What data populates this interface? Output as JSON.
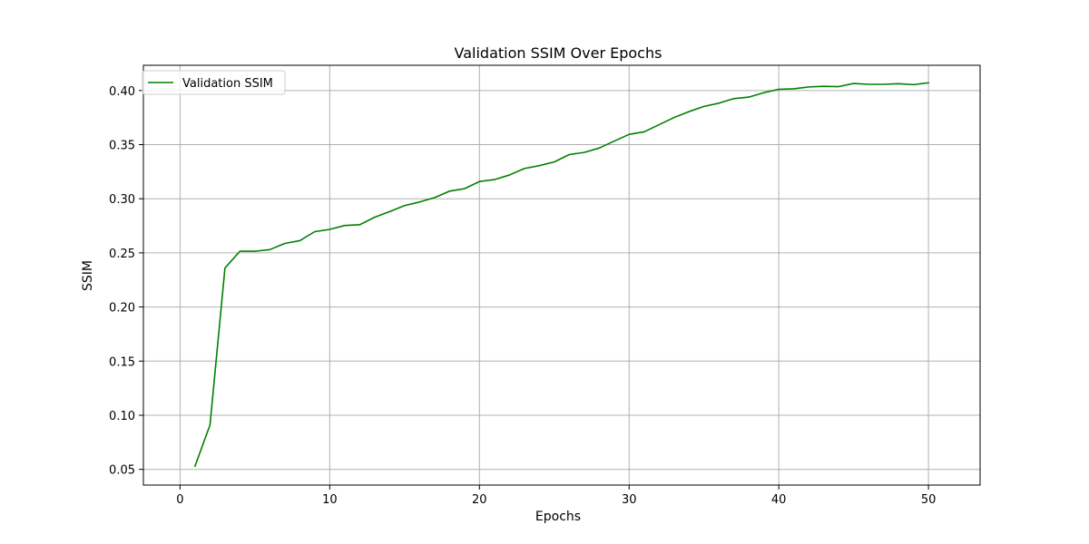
{
  "chart_data": {
    "type": "line",
    "title": "Validation SSIM Over Epochs",
    "xlabel": "Epochs",
    "ylabel": "SSIM",
    "xlim": [
      -2.45,
      53.45
    ],
    "ylim": [
      0.0355,
      0.4233
    ],
    "xticks": [
      0,
      10,
      20,
      30,
      40,
      50
    ],
    "yticks": [
      0.05,
      0.1,
      0.15,
      0.2,
      0.25,
      0.3,
      0.35,
      0.4
    ],
    "xtick_labels": [
      "0",
      "10",
      "20",
      "30",
      "40",
      "50"
    ],
    "ytick_labels": [
      "0.05",
      "0.10",
      "0.15",
      "0.20",
      "0.25",
      "0.30",
      "0.35",
      "0.40"
    ],
    "grid": true,
    "legend_position": "upper-left",
    "series": [
      {
        "name": "Validation SSIM",
        "color": "#008000",
        "x": [
          1,
          2,
          3,
          4,
          5,
          6,
          7,
          8,
          9,
          10,
          11,
          12,
          13,
          14,
          15,
          16,
          17,
          18,
          19,
          20,
          21,
          22,
          23,
          24,
          25,
          26,
          27,
          28,
          29,
          30,
          31,
          32,
          33,
          34,
          35,
          36,
          37,
          38,
          39,
          40,
          41,
          42,
          43,
          44,
          45,
          46,
          47,
          48,
          49,
          50
        ],
        "values": [
          0.053,
          0.091,
          0.236,
          0.2515,
          0.2515,
          0.253,
          0.2587,
          0.2613,
          0.2696,
          0.2717,
          0.2753,
          0.276,
          0.2829,
          0.2881,
          0.2937,
          0.297,
          0.301,
          0.307,
          0.3093,
          0.3159,
          0.3177,
          0.3219,
          0.3279,
          0.3306,
          0.334,
          0.3408,
          0.3428,
          0.3468,
          0.3532,
          0.3595,
          0.3618,
          0.3684,
          0.375,
          0.3805,
          0.3853,
          0.3883,
          0.3925,
          0.3939,
          0.398,
          0.4011,
          0.4016,
          0.4033,
          0.4039,
          0.4036,
          0.4065,
          0.4057,
          0.4057,
          0.4063,
          0.4054,
          0.4071
        ]
      }
    ]
  },
  "colors": {
    "series": "#008000",
    "grid": "#b0b0b0",
    "axes": "#000000",
    "background": "#ffffff"
  }
}
